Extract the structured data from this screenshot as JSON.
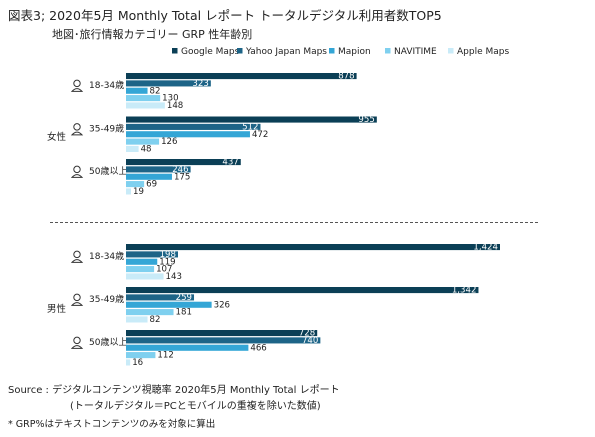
{
  "title": "図表3; 2020年5月  Monthly Total レポート  トータルデジタル利用者数TOP5",
  "subtitle": "地図･旅行情報カテゴリー  GRP  性年齢別",
  "source_line1": "Source :   デジタルコンテンツ視聴率 2020年5月 Monthly Total レポート",
  "source_line2": "(トータルデジタル＝PCとモバイルの重複を除いた数値)",
  "footnote": "* GRP%はテキストコンテンツのみを対象に算出",
  "colors": {
    "Google Maps": "#0b3f56",
    "Yahoo Japan Maps": "#1d6487",
    "Mapion": "#34a6d6",
    "NAVITIME": "#7fd0ef",
    "Apple Maps": "#c9ebf8"
  },
  "chart_data": {
    "type": "bar",
    "orientation": "horizontal",
    "legend_position": "top",
    "grid": false,
    "xlim": [
      0,
      1500
    ],
    "series_names": [
      "Google Maps",
      "Yahoo Japan Maps",
      "Mapion",
      "NAVITIME",
      "Apple Maps"
    ],
    "groups": [
      {
        "gender": "女性",
        "ages": [
          {
            "label": "18-34歳",
            "values": [
              878,
              323,
              82,
              130,
              148
            ],
            "value_labels": [
              "878",
              "323",
              "82",
              "130",
              "148"
            ]
          },
          {
            "label": "35-49歳",
            "values": [
              955,
              512,
              472,
              126,
              48
            ],
            "value_labels": [
              "955",
              "512",
              "472",
              "126",
              "48"
            ]
          },
          {
            "label": "50歳以上",
            "values": [
              437,
              246,
              175,
              69,
              19
            ],
            "value_labels": [
              "437",
              "246",
              "175",
              "69",
              "19"
            ]
          }
        ]
      },
      {
        "gender": "男性",
        "ages": [
          {
            "label": "18-34歳",
            "values": [
              1424,
              198,
              119,
              107,
              143
            ],
            "value_labels": [
              "1,424",
              "198",
              "119",
              "107",
              "143"
            ]
          },
          {
            "label": "35-49歳",
            "values": [
              1342,
              259,
              326,
              181,
              82
            ],
            "value_labels": [
              "1,342",
              "259",
              "326",
              "181",
              "82"
            ]
          },
          {
            "label": "50歳以上",
            "values": [
              728,
              740,
              466,
              112,
              16
            ],
            "value_labels": [
              "728",
              "740",
              "466",
              "112",
              "16"
            ]
          }
        ]
      }
    ]
  }
}
